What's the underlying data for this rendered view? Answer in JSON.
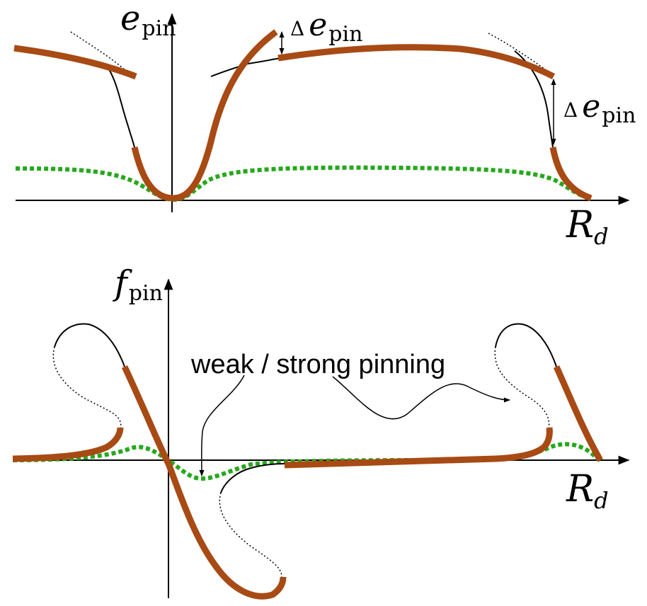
{
  "top_panel": {
    "y_axis": {
      "symbol": "e",
      "subscript": "pin"
    },
    "x_axis": {
      "symbol": "R",
      "subscript": "d"
    },
    "jump_label_1": {
      "delta": "Δ",
      "symbol": "e",
      "subscript": "pin"
    },
    "jump_label_2": {
      "delta": "Δ",
      "symbol": "e",
      "subscript": "pin"
    }
  },
  "bottom_panel": {
    "y_axis": {
      "symbol": "f",
      "subscript": "pin"
    },
    "x_axis": {
      "symbol": "R",
      "subscript": "d"
    },
    "annotation": "weak / strong pinning"
  },
  "colors": {
    "strong_branch": "#a84a14",
    "weak_pinning": "#26a81c",
    "unstable_branch": "#000000",
    "axes": "#000000"
  }
}
